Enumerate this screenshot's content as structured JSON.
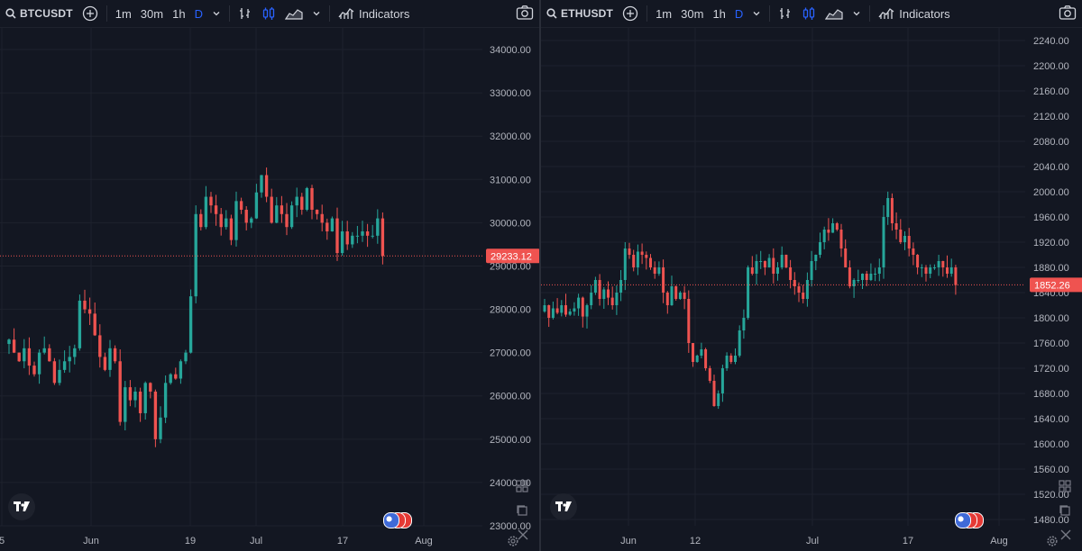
{
  "toolbar": {
    "intervals": [
      "1m",
      "30m",
      "1h",
      "D"
    ],
    "indicators_label": "Indicators"
  },
  "colors": {
    "background": "#131722",
    "up": "#26a69a",
    "down": "#ef5350",
    "grid": "#1e222d",
    "axis_text": "#b2b5be",
    "active_interval": "#2962ff"
  },
  "panels": [
    {
      "symbol": "BTCUSDT",
      "price_labels": [
        "34000.00",
        "33000.00",
        "32000.00",
        "31000.00",
        "30000.00",
        "29000.00",
        "28000.00",
        "27000.00",
        "26000.00",
        "25000.00",
        "24000.00",
        "23000.00"
      ],
      "time_labels": [
        "5",
        "Jun",
        "19",
        "Jul",
        "17",
        "Aug"
      ],
      "last_price": "29233.12",
      "chart_data": {
        "type": "candlestick",
        "y_range": [
          23000,
          34500
        ],
        "x_labels": [
          "5",
          "Jun",
          "19",
          "Jul",
          "17",
          "Aug"
        ],
        "closes": [
          27300,
          27000,
          26800,
          27100,
          26700,
          26500,
          27000,
          27100,
          26800,
          26300,
          26600,
          26800,
          26900,
          27100,
          28200,
          28000,
          27900,
          27400,
          26900,
          26600,
          27100,
          26800,
          25400,
          26200,
          25900,
          26100,
          25600,
          26300,
          26100,
          25000,
          25500,
          26300,
          26500,
          26400,
          26800,
          27000,
          28300,
          30200,
          29900,
          30600,
          30400,
          30200,
          29900,
          30100,
          29600,
          30500,
          30300,
          30000,
          30100,
          30700,
          31100,
          30600,
          30000,
          30400,
          30200,
          29900,
          30400,
          30600,
          30300,
          30800,
          30300,
          30200,
          30000,
          29800,
          30100,
          29300,
          29800,
          29500,
          29700,
          29700,
          29800,
          29700,
          29700,
          30100,
          29233
        ],
        "note": "Daily candles, approx. late May to 24 Jul; last candle red"
      }
    },
    {
      "symbol": "ETHUSDT",
      "price_labels": [
        "2240.00",
        "2200.00",
        "2160.00",
        "2120.00",
        "2080.00",
        "2040.00",
        "2000.00",
        "1960.00",
        "1920.00",
        "1880.00",
        "1840.00",
        "1800.00",
        "1760.00",
        "1720.00",
        "1680.00",
        "1640.00",
        "1600.00",
        "1560.00",
        "1520.00",
        "1480.00"
      ],
      "time_labels": [
        "Jun",
        "12",
        "Jul",
        "17",
        "Aug"
      ],
      "last_price": "1852.26",
      "chart_data": {
        "type": "candlestick",
        "y_range": [
          1470,
          2260
        ],
        "x_labels": [
          "Jun",
          "12",
          "Jul",
          "17",
          "Aug"
        ],
        "closes": [
          1820,
          1800,
          1815,
          1808,
          1820,
          1805,
          1810,
          1815,
          1832,
          1802,
          1820,
          1840,
          1860,
          1830,
          1845,
          1832,
          1820,
          1840,
          1860,
          1910,
          1900,
          1880,
          1905,
          1900,
          1895,
          1880,
          1870,
          1880,
          1840,
          1820,
          1850,
          1830,
          1840,
          1830,
          1760,
          1730,
          1740,
          1750,
          1720,
          1700,
          1660,
          1680,
          1720,
          1740,
          1730,
          1740,
          1780,
          1800,
          1880,
          1870,
          1890,
          1890,
          1880,
          1895,
          1870,
          1880,
          1900,
          1880,
          1860,
          1850,
          1840,
          1830,
          1860,
          1890,
          1900,
          1920,
          1940,
          1935,
          1950,
          1940,
          1910,
          1880,
          1850,
          1860,
          1860,
          1870,
          1860,
          1870,
          1870,
          1880,
          1960,
          1990,
          1950,
          1940,
          1920,
          1930,
          1910,
          1900,
          1880,
          1880,
          1870,
          1880,
          1880,
          1890,
          1880,
          1870,
          1880,
          1852
        ]
      }
    }
  ]
}
